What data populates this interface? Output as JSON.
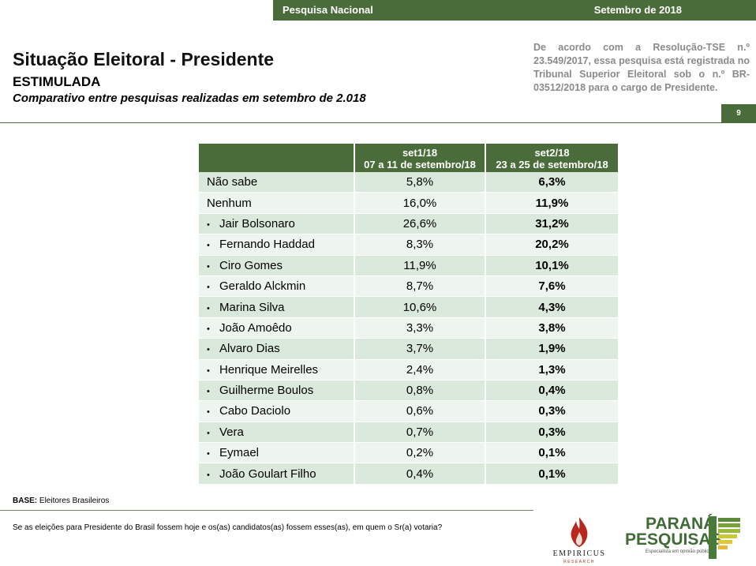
{
  "header": {
    "left_label": "Pesquisa Nacional",
    "right_label": "Setembro de 2018"
  },
  "title": "Situação Eleitoral - Presidente",
  "subtitle": "ESTIMULADA",
  "comparativo": "Comparativo entre pesquisas realizadas em setembro de 2.018",
  "legal_text": "De acordo com a Resolução-TSE n.º 23.549/2017, essa pesquisa está registrada no Tribunal Superior Eleitoral sob o n.º BR-03512/2018 para o cargo de Presidente.",
  "page_number": "9",
  "table": {
    "columns": [
      {
        "title": "set1/18",
        "dates": "07 a 11 de setembro/18"
      },
      {
        "title": "set2/18",
        "dates": "23 a 25 de setembro/18"
      }
    ],
    "rows": [
      {
        "name": "Não sabe",
        "bullet": false,
        "v1": "5,8%",
        "v2": "6,3%"
      },
      {
        "name": "Nenhum",
        "bullet": false,
        "v1": "16,0%",
        "v2": "11,9%"
      },
      {
        "name": "Jair Bolsonaro",
        "bullet": true,
        "v1": "26,6%",
        "v2": "31,2%"
      },
      {
        "name": "Fernando Haddad",
        "bullet": true,
        "v1": "8,3%",
        "v2": "20,2%"
      },
      {
        "name": "Ciro Gomes",
        "bullet": true,
        "v1": "11,9%",
        "v2": "10,1%"
      },
      {
        "name": "Geraldo Alckmin",
        "bullet": true,
        "v1": "8,7%",
        "v2": "7,6%"
      },
      {
        "name": "Marina Silva",
        "bullet": true,
        "v1": "10,6%",
        "v2": "4,3%"
      },
      {
        "name": "João Amoêdo",
        "bullet": true,
        "v1": "3,3%",
        "v2": "3,8%"
      },
      {
        "name": "Alvaro Dias",
        "bullet": true,
        "v1": "3,7%",
        "v2": "1,9%"
      },
      {
        "name": "Henrique Meirelles",
        "bullet": true,
        "v1": "2,4%",
        "v2": "1,3%"
      },
      {
        "name": "Guilherme Boulos",
        "bullet": true,
        "v1": "0,8%",
        "v2": "0,4%"
      },
      {
        "name": "Cabo Daciolo",
        "bullet": true,
        "v1": "0,6%",
        "v2": "0,3%"
      },
      {
        "name": "Vera",
        "bullet": true,
        "v1": "0,7%",
        "v2": "0,3%"
      },
      {
        "name": "Eymael",
        "bullet": true,
        "v1": "0,2%",
        "v2": "0,1%"
      },
      {
        "name": "João Goulart Filho",
        "bullet": true,
        "v1": "0,4%",
        "v2": "0,1%"
      }
    ]
  },
  "base": {
    "label": "BASE:",
    "value": "Eleitores Brasileiros"
  },
  "question": "Se as eleições para Presidente do Brasil fossem hoje e os(as) candidatos(as) fossem esses(as), em quem o Sr(a) votaria?",
  "logos": {
    "empiricus": {
      "name": "EMPIRICUS",
      "sub": "RESEARCH"
    },
    "parana": {
      "line1": "PARANÁ",
      "line2": "PESQUISAS",
      "tagline": "Especialista em opinião pública."
    }
  },
  "colors": {
    "primary_green": "#4a6b3a",
    "row_odd": "#dbe9dc",
    "row_even": "#eef5ee",
    "legal_gray": "#8a8a8a"
  }
}
